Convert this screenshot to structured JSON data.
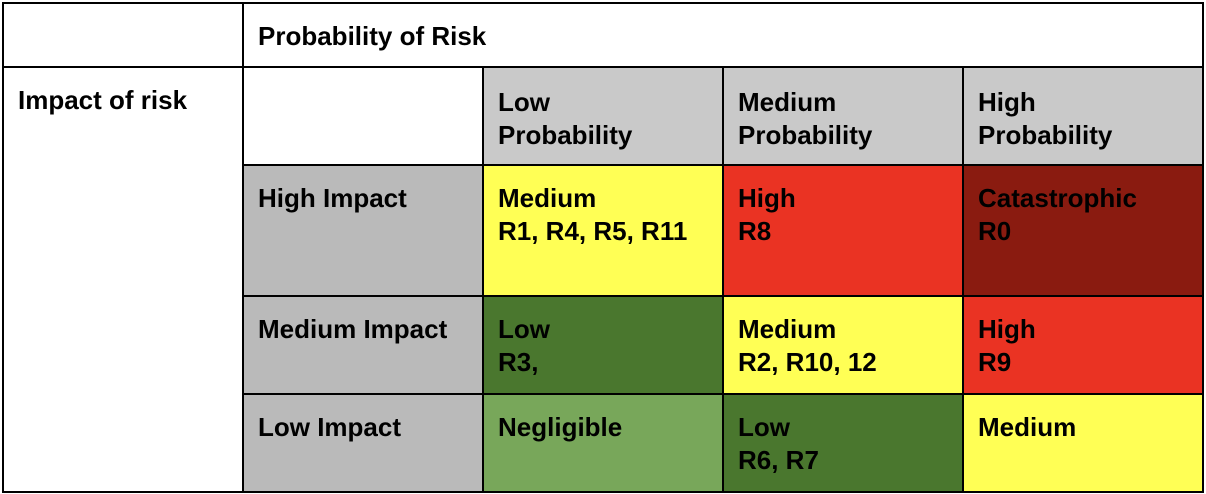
{
  "matrix": {
    "probability_header": "Probability of Risk",
    "impact_header": "Impact of risk",
    "columns": [
      {
        "line1": "Low",
        "line2": "Probability"
      },
      {
        "line1": "Medium",
        "line2": "Probability"
      },
      {
        "line1": "High",
        "line2": "Probability"
      }
    ],
    "rows": [
      {
        "label": "High Impact",
        "cells": [
          {
            "level": "Medium",
            "refs": "R1, R4, R5, R11",
            "color": "#ffff55"
          },
          {
            "level": "High",
            "refs": "R8",
            "color": "#ea3323"
          },
          {
            "level": "Catastrophic",
            "refs": "R0",
            "color": "#8a1b10"
          }
        ]
      },
      {
        "label": "Medium Impact",
        "cells": [
          {
            "level": "Low",
            "refs": "R3,",
            "color": "#4a772e"
          },
          {
            "level": "Medium",
            "refs": "R2, R10, 12",
            "color": "#ffff55"
          },
          {
            "level": "High",
            "refs": "R9",
            "color": "#ea3323"
          }
        ]
      },
      {
        "label": "Low Impact",
        "cells": [
          {
            "level": "Negligible",
            "refs": "",
            "color": "#78a75a"
          },
          {
            "level": "Low",
            "refs": "R6, R7",
            "color": "#4a772e"
          },
          {
            "level": "Medium",
            "refs": "",
            "color": "#ffff55"
          }
        ]
      }
    ],
    "colors": {
      "header_gray": "#c9c9c9",
      "row_label_gray": "#bababa",
      "border": "#000000"
    }
  }
}
